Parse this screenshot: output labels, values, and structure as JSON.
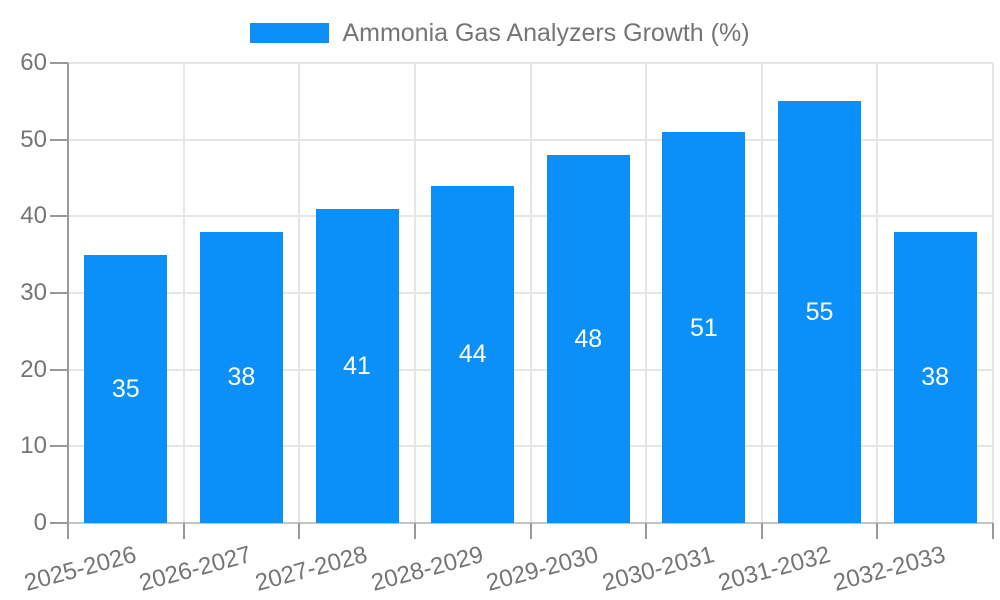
{
  "legend": {
    "label": "Ammonia Gas Analyzers Growth (%)"
  },
  "chart_data": {
    "type": "bar",
    "title": "Ammonia Gas Analyzers Growth (%)",
    "categories": [
      "2025-2026",
      "2026-2027",
      "2027-2028",
      "2028-2029",
      "2029-2030",
      "2030-2031",
      "2031-2032",
      "2032-2033"
    ],
    "values": [
      35,
      38,
      41,
      44,
      48,
      51,
      55,
      38
    ],
    "xlabel": "",
    "ylabel": "",
    "ylim": [
      0,
      60
    ],
    "yticks": [
      0,
      10,
      20,
      30,
      40,
      50,
      60
    ],
    "grid": true,
    "legend_position": "top-center",
    "bar_labels_shown": true,
    "bar_label_position": "inside-center",
    "x_label_rotation_deg": -15,
    "colors": {
      "bar": "#0a90f8",
      "bar_label": "#ffffff",
      "axis_text": "#757575",
      "legend_text": "#757575",
      "gridline": "#e6e6e6",
      "y_axis_line": "#999999",
      "x_axis_line": "#c4c4c4",
      "tick": "#999999",
      "background": "#ffffff"
    }
  }
}
